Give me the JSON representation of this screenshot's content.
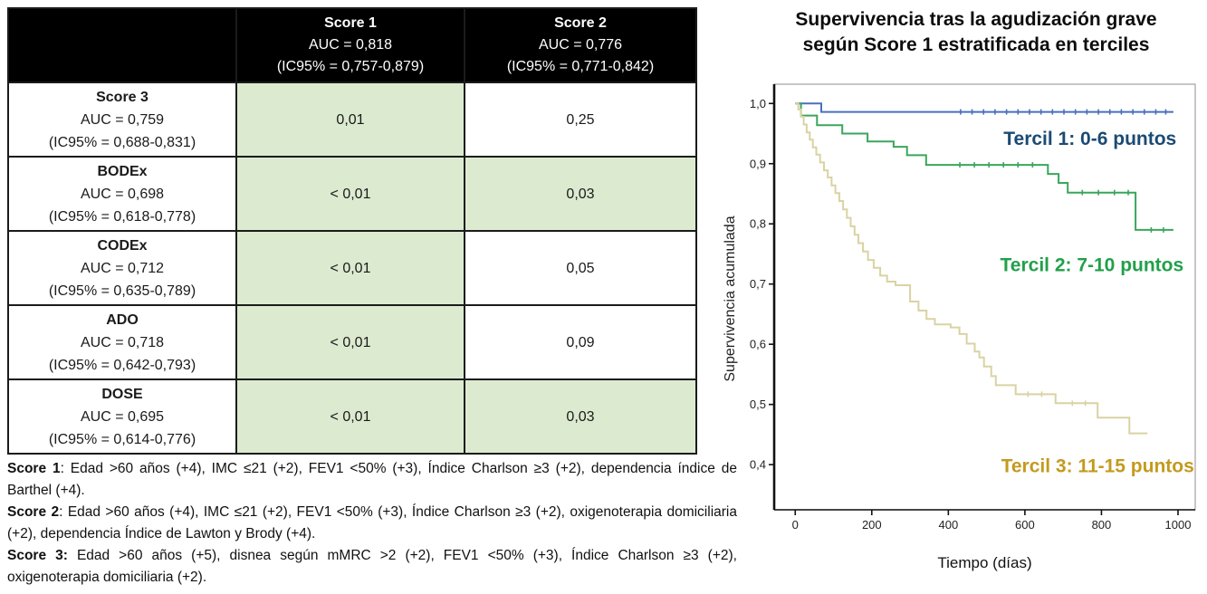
{
  "table": {
    "header_bg": "#000000",
    "label_bg": "#e8e8e8",
    "highlight_color": "#dcead0",
    "header": {
      "corner": "",
      "columns": [
        {
          "name": "Score 1",
          "auc": "AUC = 0,818",
          "ic": "(IC95% = 0,757-0,879)"
        },
        {
          "name": "Score 2",
          "auc": "AUC = 0,776",
          "ic": "(IC95% = 0,771-0,842)"
        }
      ]
    },
    "rows": [
      {
        "name": "Score 3",
        "auc": "AUC = 0,759",
        "ic": "(IC95% = 0,688-0,831)",
        "p1": "0,01",
        "p2": "0,25",
        "p1_highlight": true,
        "p2_highlight": false
      },
      {
        "name": "BODEx",
        "auc": "AUC = 0,698",
        "ic": "(IC95% = 0,618-0,778)",
        "p1": "< 0,01",
        "p2": "0,03",
        "p1_highlight": true,
        "p2_highlight": true
      },
      {
        "name": "CODEx",
        "auc": "AUC = 0,712",
        "ic": "(IC95% = 0,635-0,789)",
        "p1": "< 0,01",
        "p2": "0,05",
        "p1_highlight": true,
        "p2_highlight": false
      },
      {
        "name": "ADO",
        "auc": "AUC = 0,718",
        "ic": "(IC95% = 0,642-0,793)",
        "p1": "< 0,01",
        "p2": "0,09",
        "p1_highlight": true,
        "p2_highlight": false
      },
      {
        "name": "DOSE",
        "auc": "AUC = 0,695",
        "ic": "(IC95% = 0,614-0,776)",
        "p1": "< 0,01",
        "p2": "0,03",
        "p1_highlight": true,
        "p2_highlight": true
      }
    ]
  },
  "footnotes": [
    {
      "label": "Score 1",
      "text": ": Edad >60 años (+4), IMC ≤21 (+2), FEV1 <50% (+3), Índice Charlson ≥3 (+2), dependencia índice de Barthel (+4)."
    },
    {
      "label": "Score 2",
      "text": ": Edad >60 años (+4), IMC ≤21 (+2), FEV1 <50% (+3), Índice Charlson ≥3 (+2), oxigenoterapia domiciliaria (+2), dependencia Índice de Lawton y Brody (+4)."
    },
    {
      "label": "Score 3:",
      "text": " Edad >60 años (+5), disnea según mMRC >2 (+2), FEV1 <50% (+3), Índice Charlson ≥3 (+2), oxigenoterapia domiciliaria (+2)."
    }
  ],
  "chart_data": {
    "type": "line",
    "subtype": "kaplan-meier-step",
    "title_lines": [
      "Supervivencia tras la agudización grave",
      "según  Score 1 estratificada en terciles"
    ],
    "xlabel": "Tiempo (días)",
    "ylabel": "Supervivencia acumulada",
    "xlim": [
      -55,
      1045
    ],
    "ylim": [
      0.325,
      1.032
    ],
    "grid": false,
    "legend": "inline-annotations",
    "x_ticks": [
      {
        "v": 0,
        "label": "0"
      },
      {
        "v": 200,
        "label": "200"
      },
      {
        "v": 400,
        "label": "400"
      },
      {
        "v": 600,
        "label": "600"
      },
      {
        "v": 800,
        "label": "800"
      },
      {
        "v": 1000,
        "label": "1000"
      }
    ],
    "y_ticks": [
      {
        "v": 0.4,
        "label": "0,4"
      },
      {
        "v": 0.5,
        "label": "0,5"
      },
      {
        "v": 0.6,
        "label": "0,6"
      },
      {
        "v": 0.7,
        "label": "0,7"
      },
      {
        "v": 0.8,
        "label": "0,8"
      },
      {
        "v": 0.9,
        "label": "0,9"
      },
      {
        "v": 1.0,
        "label": "1,0"
      }
    ],
    "series": [
      {
        "name": "Tercil 1",
        "label": "Tercil 1: 0-6 puntos",
        "line_color": "#4a6fbe",
        "label_color": "#1b4a73",
        "label_t": 770,
        "label_v": 0.942,
        "steps": [
          [
            0,
            1.0
          ],
          [
            68,
            0.986
          ],
          [
            988,
            0.986
          ]
        ],
        "censor_ticks": [
          432,
          462,
          492,
          522,
          552,
          582,
          612,
          642,
          672,
          702,
          732,
          762,
          792,
          822,
          852,
          882,
          912,
          942,
          968
        ]
      },
      {
        "name": "Tercil 2",
        "label": "Tercil 2: 7-10 puntos",
        "line_color": "#3aa65c",
        "label_color": "#21a04a",
        "label_t": 775,
        "label_v": 0.732,
        "steps": [
          [
            0,
            1.0
          ],
          [
            15,
            0.98
          ],
          [
            57,
            0.964
          ],
          [
            123,
            0.95
          ],
          [
            189,
            0.937
          ],
          [
            257,
            0.928
          ],
          [
            292,
            0.914
          ],
          [
            342,
            0.898
          ],
          [
            660,
            0.883
          ],
          [
            688,
            0.868
          ],
          [
            712,
            0.852
          ],
          [
            889,
            0.79
          ],
          [
            988,
            0.79
          ]
        ],
        "censor_ticks": [
          430,
          468,
          506,
          544,
          582,
          620,
          750,
          792,
          834,
          870,
          930,
          962
        ]
      },
      {
        "name": "Tercil 3",
        "label": "Tercil 3: 11-15 puntos",
        "line_color": "#d9d3a2",
        "label_color": "#c49a1e",
        "label_t": 790,
        "label_v": 0.398,
        "steps": [
          [
            0,
            1.0
          ],
          [
            8,
            0.99
          ],
          [
            15,
            0.978
          ],
          [
            22,
            0.965
          ],
          [
            30,
            0.952
          ],
          [
            38,
            0.94
          ],
          [
            46,
            0.927
          ],
          [
            55,
            0.915
          ],
          [
            65,
            0.902
          ],
          [
            75,
            0.889
          ],
          [
            85,
            0.877
          ],
          [
            95,
            0.864
          ],
          [
            105,
            0.851
          ],
          [
            115,
            0.838
          ],
          [
            125,
            0.824
          ],
          [
            135,
            0.81
          ],
          [
            145,
            0.796
          ],
          [
            155,
            0.782
          ],
          [
            165,
            0.768
          ],
          [
            177,
            0.754
          ],
          [
            190,
            0.74
          ],
          [
            205,
            0.727
          ],
          [
            222,
            0.714
          ],
          [
            240,
            0.704
          ],
          [
            262,
            0.698
          ],
          [
            300,
            0.671
          ],
          [
            322,
            0.656
          ],
          [
            343,
            0.642
          ],
          [
            365,
            0.633
          ],
          [
            406,
            0.628
          ],
          [
            429,
            0.617
          ],
          [
            448,
            0.601
          ],
          [
            469,
            0.588
          ],
          [
            481,
            0.578
          ],
          [
            493,
            0.563
          ],
          [
            512,
            0.547
          ],
          [
            524,
            0.532
          ],
          [
            576,
            0.517
          ],
          [
            680,
            0.502
          ],
          [
            790,
            0.478
          ],
          [
            873,
            0.452
          ],
          [
            920,
            0.452
          ]
        ],
        "censor_ticks": [
          608,
          644,
          724,
          758
        ]
      }
    ]
  }
}
